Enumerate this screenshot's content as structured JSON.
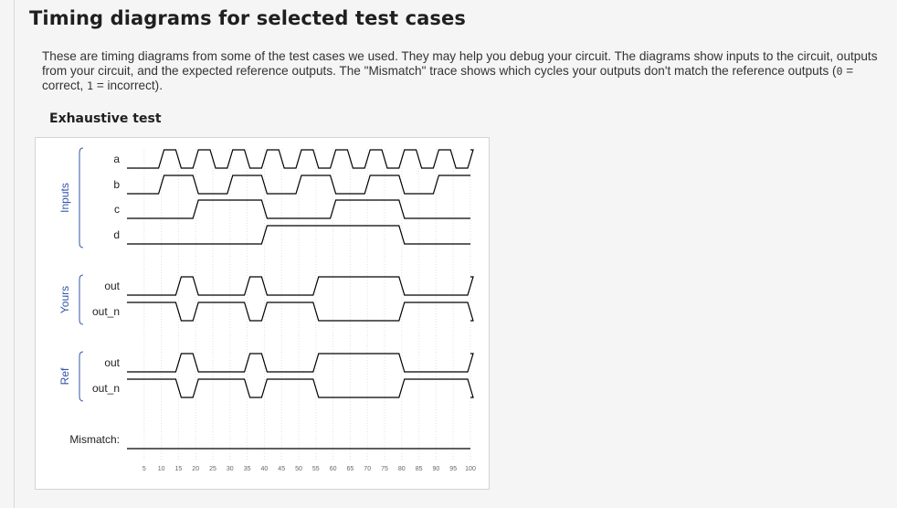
{
  "heading": "Timing diagrams for selected test cases",
  "description": {
    "part1": "These are timing diagrams from some of the test cases we used. They may help you debug your circuit. The diagrams show inputs to the circuit, outputs from your circuit, and the expected reference outputs. The \"Mismatch\" trace shows which cycles your outputs don't match the reference outputs (",
    "zero": "0",
    "part2": " = correct, ",
    "one": "1",
    "part3": " = incorrect)."
  },
  "section_title": "Exhaustive test",
  "colors": {
    "wave": "#000000",
    "group_label": "#3355aa",
    "grid": "#e2e2e2",
    "signal_label": "#222222"
  },
  "chart_data": {
    "type": "timing",
    "groups": [
      {
        "label": "Inputs",
        "signals": [
          "a",
          "b",
          "c",
          "d"
        ]
      },
      {
        "label": "Yours",
        "signals": [
          "out",
          "out_n"
        ]
      },
      {
        "label": "Ref",
        "signals": [
          "out",
          "out_n"
        ]
      }
    ],
    "mismatch_label": "Mismatch:",
    "time_ticks": [
      5,
      10,
      15,
      20,
      25,
      30,
      35,
      40,
      45,
      50,
      55,
      60,
      65,
      70,
      75,
      80,
      85,
      90,
      95,
      100
    ],
    "time_range": [
      0,
      100
    ],
    "traces": [
      {
        "group": "Inputs",
        "name": "a",
        "transitions": [
          [
            0,
            0
          ],
          [
            10,
            1
          ],
          [
            15,
            0
          ],
          [
            20,
            1
          ],
          [
            25,
            0
          ],
          [
            30,
            1
          ],
          [
            35,
            0
          ],
          [
            40,
            1
          ],
          [
            45,
            0
          ],
          [
            50,
            1
          ],
          [
            55,
            0
          ],
          [
            60,
            1
          ],
          [
            65,
            0
          ],
          [
            70,
            1
          ],
          [
            75,
            0
          ],
          [
            80,
            1
          ],
          [
            85,
            0
          ],
          [
            90,
            1
          ],
          [
            95,
            0
          ],
          [
            100,
            1
          ]
        ]
      },
      {
        "group": "Inputs",
        "name": "b",
        "transitions": [
          [
            0,
            0
          ],
          [
            10,
            1
          ],
          [
            20,
            0
          ],
          [
            30,
            1
          ],
          [
            40,
            0
          ],
          [
            50,
            1
          ],
          [
            60,
            0
          ],
          [
            70,
            1
          ],
          [
            80,
            0
          ],
          [
            90,
            1
          ]
        ]
      },
      {
        "group": "Inputs",
        "name": "c",
        "transitions": [
          [
            0,
            0
          ],
          [
            20,
            1
          ],
          [
            40,
            0
          ],
          [
            60,
            1
          ],
          [
            80,
            0
          ]
        ]
      },
      {
        "group": "Inputs",
        "name": "d",
        "transitions": [
          [
            0,
            0
          ],
          [
            40,
            1
          ],
          [
            80,
            0
          ]
        ]
      },
      {
        "group": "Yours",
        "name": "out",
        "transitions": [
          [
            0,
            0
          ],
          [
            15,
            1
          ],
          [
            20,
            0
          ],
          [
            35,
            1
          ],
          [
            40,
            0
          ],
          [
            55,
            1
          ],
          [
            80,
            0
          ],
          [
            100,
            1
          ]
        ]
      },
      {
        "group": "Yours",
        "name": "out_n",
        "transitions": [
          [
            0,
            1
          ],
          [
            15,
            0
          ],
          [
            20,
            1
          ],
          [
            35,
            0
          ],
          [
            40,
            1
          ],
          [
            55,
            0
          ],
          [
            80,
            1
          ],
          [
            100,
            0
          ]
        ]
      },
      {
        "group": "Ref",
        "name": "out",
        "transitions": [
          [
            0,
            0
          ],
          [
            15,
            1
          ],
          [
            20,
            0
          ],
          [
            35,
            1
          ],
          [
            40,
            0
          ],
          [
            55,
            1
          ],
          [
            80,
            0
          ],
          [
            100,
            1
          ]
        ]
      },
      {
        "group": "Ref",
        "name": "out_n",
        "transitions": [
          [
            0,
            1
          ],
          [
            15,
            0
          ],
          [
            20,
            1
          ],
          [
            35,
            0
          ],
          [
            40,
            1
          ],
          [
            55,
            0
          ],
          [
            80,
            1
          ],
          [
            100,
            0
          ]
        ]
      },
      {
        "group": "Mismatch",
        "name": "Mismatch",
        "transitions": [
          [
            0,
            0
          ]
        ]
      }
    ]
  }
}
